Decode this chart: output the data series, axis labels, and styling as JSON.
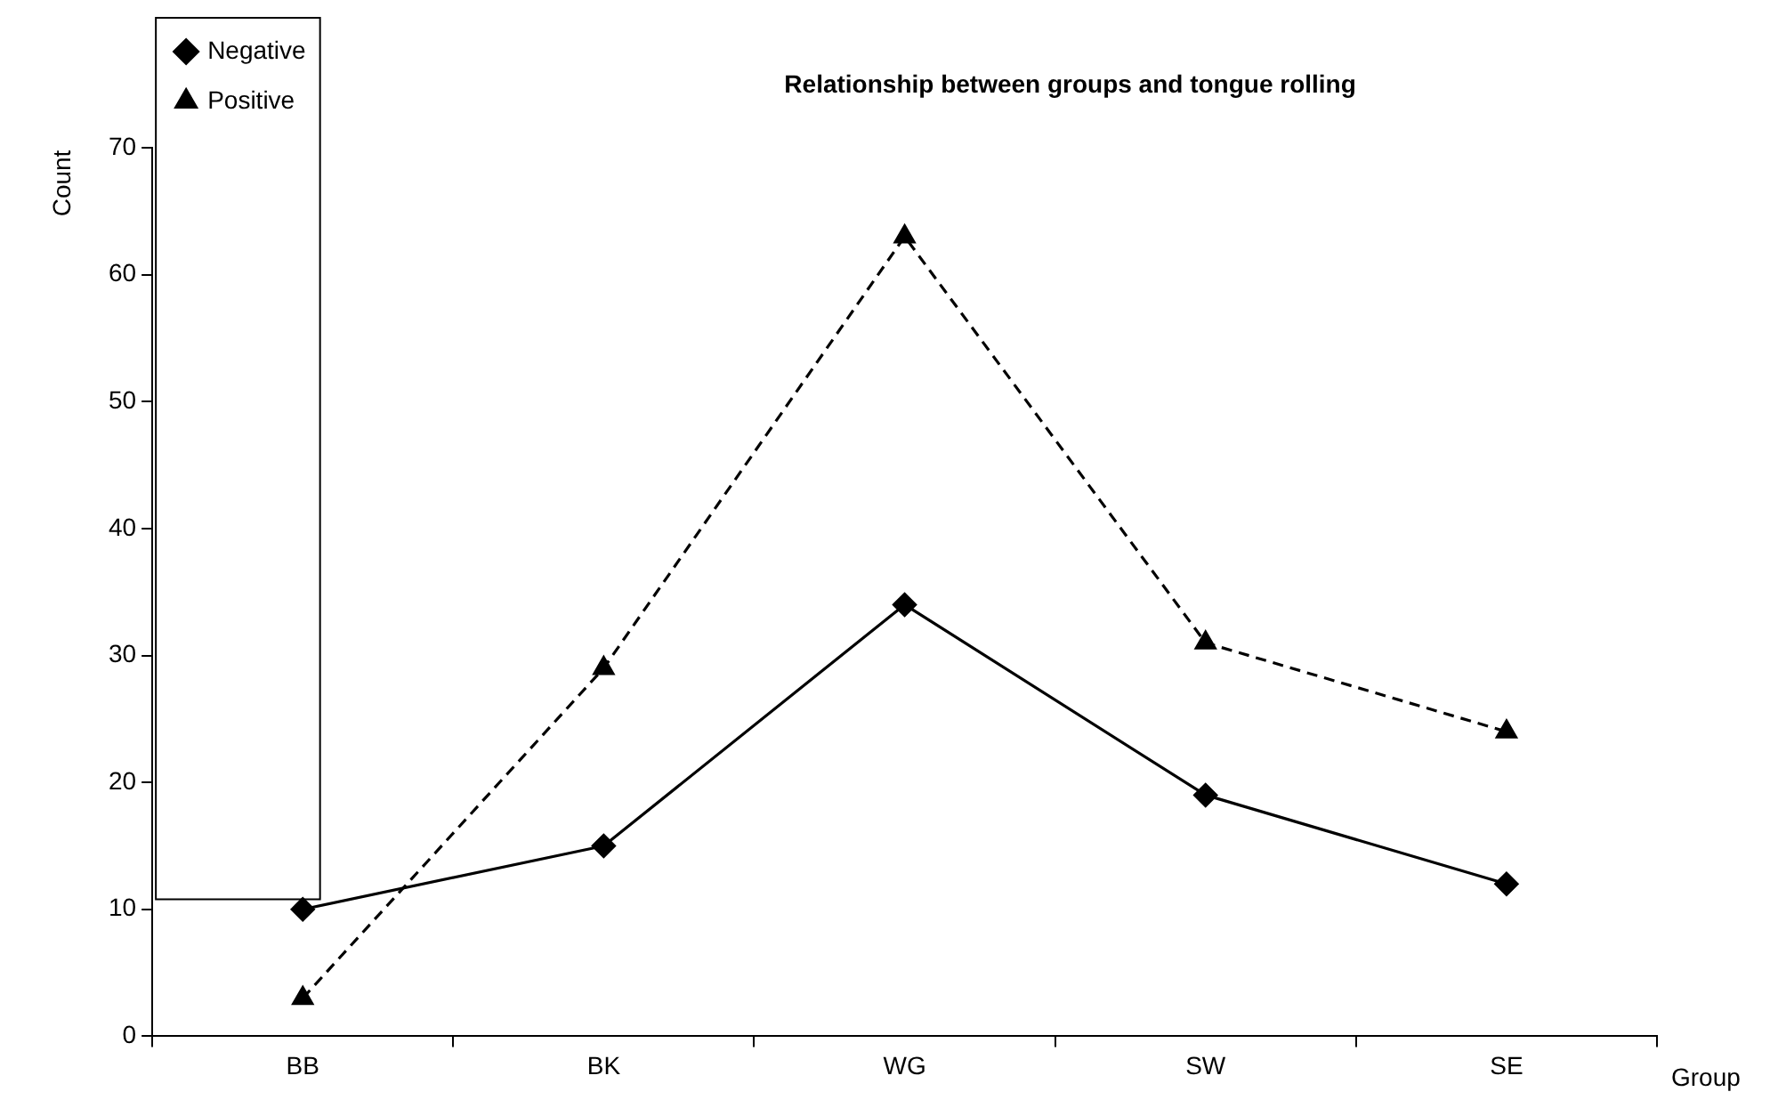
{
  "chart_data": {
    "type": "line",
    "title": "Relationship between groups and tongue rolling",
    "xlabel": "Group",
    "ylabel": "Count",
    "categories": [
      "BB",
      "BK",
      "WG",
      "SW",
      "SE"
    ],
    "series": [
      {
        "name": "Negative",
        "color": "#000000",
        "marker": "diamond",
        "line_style": "solid",
        "values": [
          10,
          15,
          34,
          19,
          12
        ]
      },
      {
        "name": "Positive",
        "color": "#000000",
        "marker": "triangle",
        "line_style": "dashed",
        "values": [
          3,
          29,
          63,
          31,
          24
        ]
      }
    ],
    "ylim": [
      0,
      70
    ],
    "yticks": [
      0,
      10,
      20,
      30,
      40,
      50,
      60,
      70
    ],
    "grid": false,
    "legend": "top left"
  }
}
